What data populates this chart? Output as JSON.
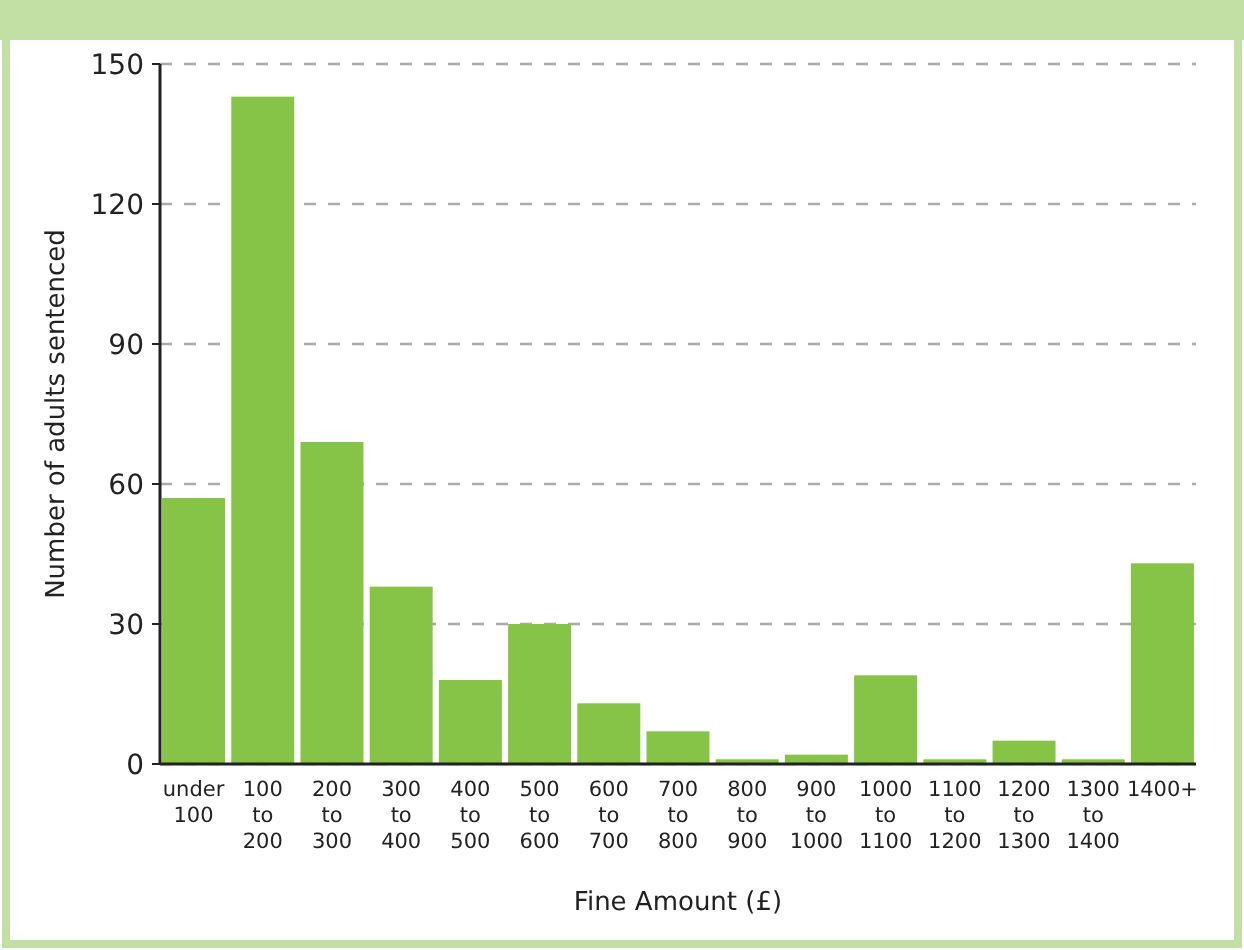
{
  "chart_data": {
    "type": "bar",
    "xlabel": "Fine Amount (£)",
    "ylabel": "Number of adults sentenced",
    "categories": [
      "under 100",
      "100 to 200",
      "200 to 300",
      "300 to 400",
      "400 to 500",
      "500 to 600",
      "600 to 700",
      "700 to 800",
      "800 to 900",
      "900 to 1000",
      "1000 to 1100",
      "1100 to 1200",
      "1200 to 1300",
      "1300 to 1400",
      "1400+"
    ],
    "values": [
      57,
      143,
      69,
      38,
      18,
      30,
      13,
      7,
      1,
      2,
      19,
      1,
      5,
      1,
      43
    ],
    "color": "#85c446",
    "ylim": [
      0,
      150
    ],
    "yticks": [
      0,
      30,
      60,
      90,
      120,
      150
    ],
    "grid": "y"
  }
}
